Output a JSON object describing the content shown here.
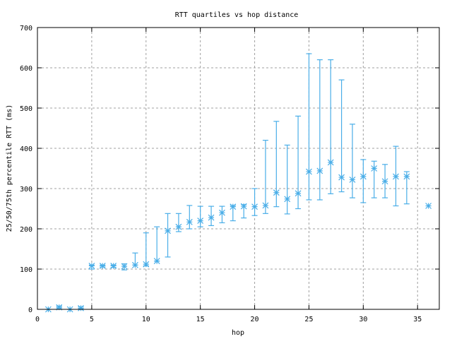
{
  "chart_data": {
    "type": "scatter",
    "title": "RTT quartiles vs hop distance",
    "xlabel": "hop",
    "ylabel": "25/50/75th percentile RTT (ms)",
    "xlim": [
      0,
      37
    ],
    "ylim": [
      0,
      700
    ],
    "xticks": [
      0,
      5,
      10,
      15,
      20,
      25,
      30,
      35
    ],
    "yticks": [
      0,
      100,
      200,
      300,
      400,
      500,
      600,
      700
    ],
    "grid": true,
    "color": "#4aaee8",
    "series": [
      {
        "name": "RTT quartiles",
        "points": [
          {
            "x": 1,
            "median": 0,
            "p25": 0,
            "p75": 0
          },
          {
            "x": 2,
            "median": 5,
            "p25": 3,
            "p75": 8
          },
          {
            "x": 3,
            "median": 0,
            "p25": 0,
            "p75": 0
          },
          {
            "x": 4,
            "median": 3,
            "p25": 1,
            "p75": 6
          },
          {
            "x": 5,
            "median": 108,
            "p25": 100,
            "p75": 110
          },
          {
            "x": 6,
            "median": 108,
            "p25": 105,
            "p75": 110
          },
          {
            "x": 7,
            "median": 108,
            "p25": 104,
            "p75": 110
          },
          {
            "x": 8,
            "median": 107,
            "p25": 98,
            "p75": 113
          },
          {
            "x": 9,
            "median": 110,
            "p25": 110,
            "p75": 140
          },
          {
            "x": 10,
            "median": 112,
            "p25": 108,
            "p75": 190
          },
          {
            "x": 11,
            "median": 120,
            "p25": 120,
            "p75": 205
          },
          {
            "x": 12,
            "median": 195,
            "p25": 130,
            "p75": 238
          },
          {
            "x": 13,
            "median": 205,
            "p25": 193,
            "p75": 238
          },
          {
            "x": 14,
            "median": 217,
            "p25": 200,
            "p75": 258
          },
          {
            "x": 15,
            "median": 220,
            "p25": 205,
            "p75": 256
          },
          {
            "x": 16,
            "median": 228,
            "p25": 208,
            "p75": 256
          },
          {
            "x": 17,
            "median": 240,
            "p25": 215,
            "p75": 256
          },
          {
            "x": 18,
            "median": 255,
            "p25": 220,
            "p75": 258
          },
          {
            "x": 19,
            "median": 256,
            "p25": 227,
            "p75": 260
          },
          {
            "x": 20,
            "median": 255,
            "p25": 233,
            "p75": 300
          },
          {
            "x": 21,
            "median": 258,
            "p25": 238,
            "p75": 420
          },
          {
            "x": 22,
            "median": 290,
            "p25": 255,
            "p75": 467
          },
          {
            "x": 23,
            "median": 274,
            "p25": 237,
            "p75": 408
          },
          {
            "x": 24,
            "median": 288,
            "p25": 250,
            "p75": 480
          },
          {
            "x": 25,
            "median": 342,
            "p25": 272,
            "p75": 635
          },
          {
            "x": 26,
            "median": 344,
            "p25": 272,
            "p75": 620
          },
          {
            "x": 27,
            "median": 365,
            "p25": 287,
            "p75": 620
          },
          {
            "x": 28,
            "median": 328,
            "p25": 292,
            "p75": 570
          },
          {
            "x": 29,
            "median": 322,
            "p25": 277,
            "p75": 460
          },
          {
            "x": 30,
            "median": 330,
            "p25": 265,
            "p75": 372
          },
          {
            "x": 31,
            "median": 350,
            "p25": 277,
            "p75": 368
          },
          {
            "x": 32,
            "median": 318,
            "p25": 277,
            "p75": 360
          },
          {
            "x": 33,
            "median": 330,
            "p25": 257,
            "p75": 405
          },
          {
            "x": 34,
            "median": 330,
            "p25": 262,
            "p75": 342
          },
          {
            "x": 36,
            "median": 257,
            "p25": 257,
            "p75": 257
          }
        ]
      }
    ]
  }
}
